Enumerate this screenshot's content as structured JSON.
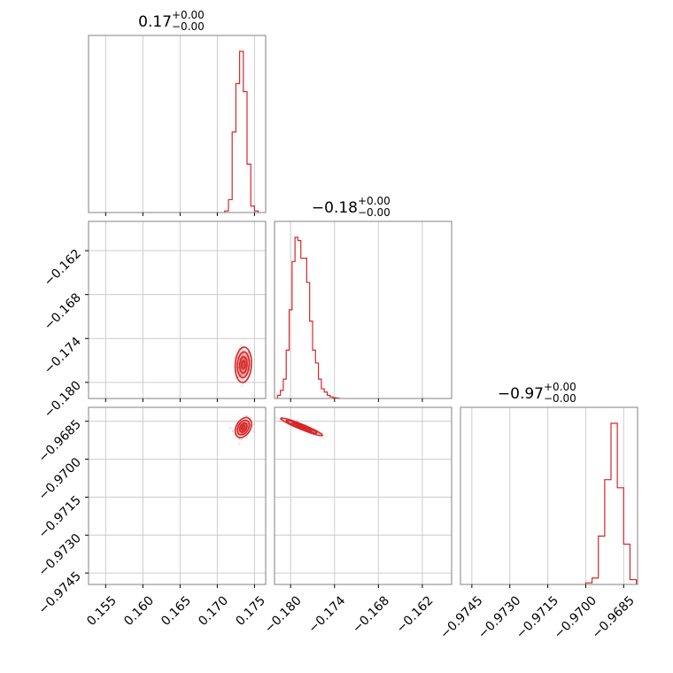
{
  "chart_data": {
    "type": "corner",
    "colors": {
      "series": "#d62728",
      "grid": "#cccccc",
      "frame": "#808080"
    },
    "parameters": [
      {
        "title": {
          "main": "0.17",
          "sup": "+0.00",
          "sub": "−0.00"
        },
        "range": [
          0.1527,
          0.1765
        ],
        "ticks": [
          0.155,
          0.16,
          0.165,
          0.17,
          0.175
        ],
        "tick_labels": [
          "0.155",
          "0.160",
          "0.165",
          "0.170",
          "0.175"
        ],
        "hist": {
          "edges": [
            0.171,
            0.1715,
            0.172,
            0.1725,
            0.173,
            0.1735,
            0.174,
            0.1745,
            0.175,
            0.1755
          ],
          "values": [
            0.01,
            0.08,
            0.5,
            0.8,
            1.0,
            0.75,
            0.3,
            0.04,
            0.01
          ]
        }
      },
      {
        "title": {
          "main": "−0.18",
          "sup": "+0.00",
          "sub": "−0.00"
        },
        "range": [
          -0.1822,
          -0.158
        ],
        "ticks": [
          -0.18,
          -0.174,
          -0.168,
          -0.162
        ],
        "tick_labels": [
          "−0.180",
          "−0.174",
          "−0.168",
          "−0.162"
        ],
        "hist": {
          "edges": [
            -0.1818,
            -0.1814,
            -0.181,
            -0.1806,
            -0.1802,
            -0.1798,
            -0.1794,
            -0.179,
            -0.1786,
            -0.1782,
            -0.1778,
            -0.1774,
            -0.177,
            -0.1766,
            -0.1762,
            -0.1758,
            -0.1754,
            -0.175,
            -0.1746,
            -0.1742,
            -0.1738,
            -0.1734
          ],
          "values": [
            0.02,
            0.05,
            0.12,
            0.3,
            0.55,
            0.85,
            1.0,
            0.98,
            0.87,
            0.87,
            0.72,
            0.48,
            0.3,
            0.22,
            0.12,
            0.06,
            0.04,
            0.02,
            0.01,
            0.005,
            0.003
          ]
        }
      },
      {
        "title": {
          "main": "−0.97",
          "sup": "+0.00",
          "sub": "−0.00"
        },
        "range": [
          -0.97495,
          -0.96795
        ],
        "ticks": [
          -0.9745,
          -0.973,
          -0.9715,
          -0.97,
          -0.9685
        ],
        "tick_labels": [
          "−0.9745",
          "−0.9730",
          "−0.9715",
          "−0.9700",
          "−0.9685"
        ],
        "hist": {
          "edges": [
            -0.97,
            -0.96975,
            -0.9695,
            -0.96925,
            -0.969,
            -0.96875,
            -0.9685,
            -0.96825,
            -0.968
          ],
          "values": [
            0.01,
            0.04,
            0.3,
            0.65,
            1.0,
            0.6,
            0.25,
            0.03
          ]
        }
      }
    ],
    "pairs": [
      {
        "x_param": 0,
        "y_param": 1,
        "center": [
          0.1735,
          -0.1776
        ],
        "sigma": [
          0.0005,
          0.0011
        ],
        "rho": 0.1,
        "points": 150
      },
      {
        "x_param": 0,
        "y_param": 2,
        "center": [
          0.1735,
          -0.96875
        ],
        "sigma": [
          0.0005,
          0.00018
        ],
        "rho": 0.35,
        "points": 150
      },
      {
        "x_param": 1,
        "y_param": 2,
        "center": [
          -0.1785,
          -0.96872
        ],
        "sigma": [
          0.0013,
          0.00016
        ],
        "rho": -0.95,
        "points": 150
      }
    ],
    "grid": true
  }
}
